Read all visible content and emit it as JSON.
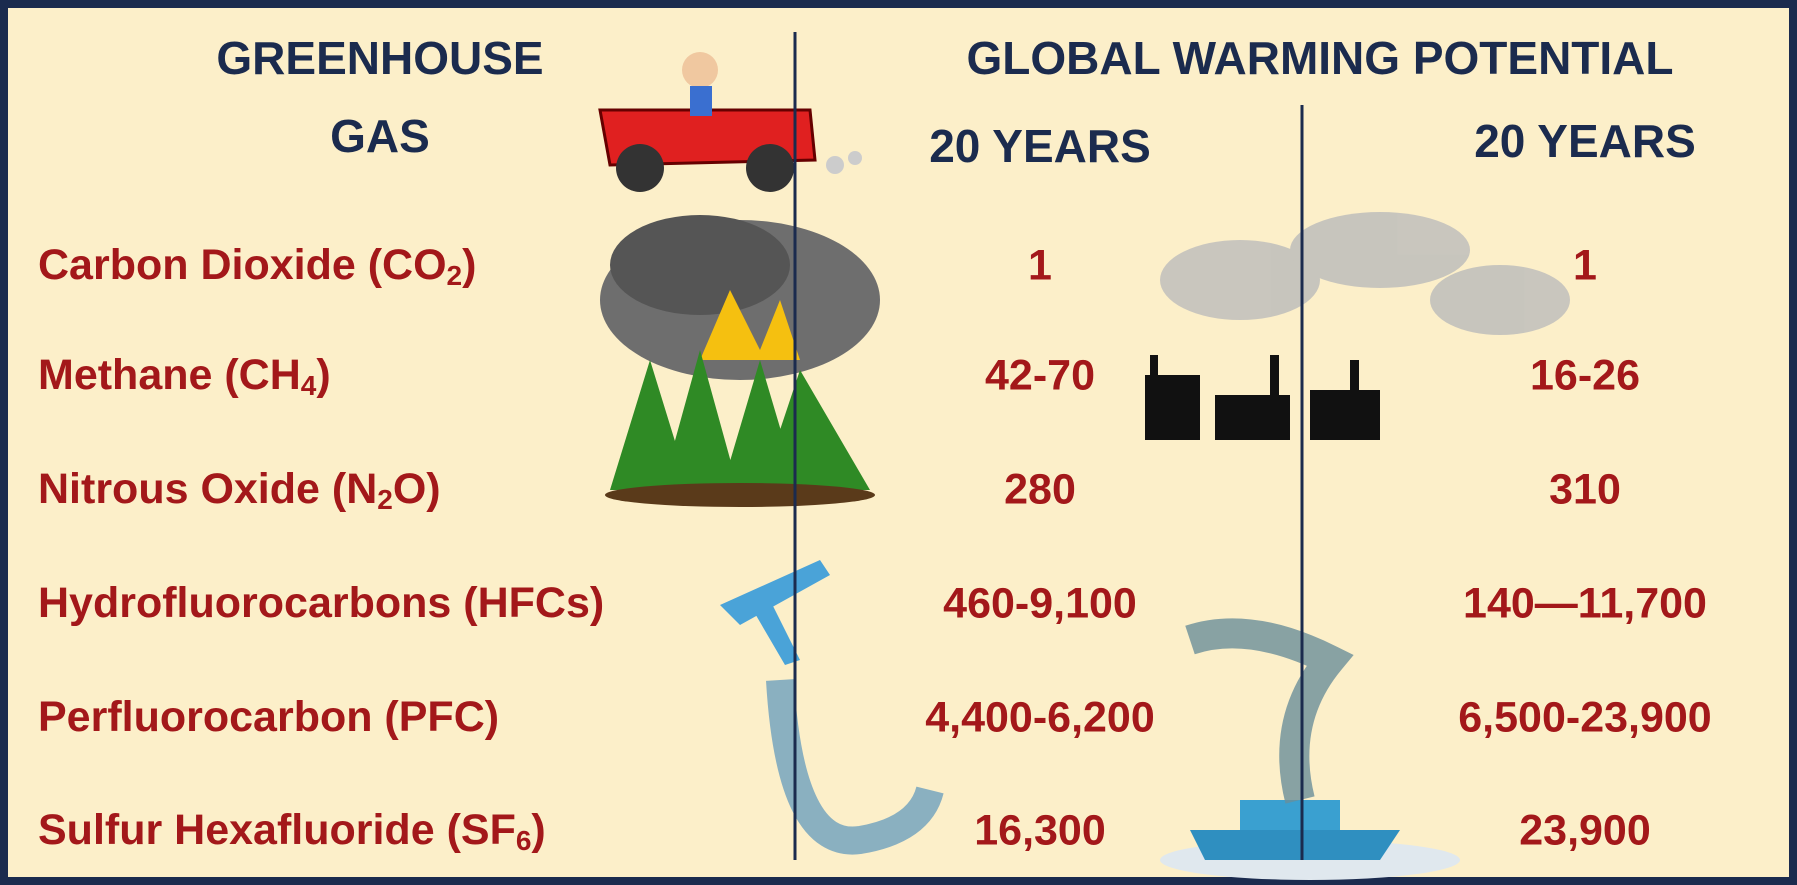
{
  "header": {
    "title_lines": [
      "GREENHOUSE",
      "GAS"
    ],
    "group_title": "GLOBAL WARMING POTENTIAL",
    "columns": [
      "20 YEARS",
      "20 YEARS"
    ]
  },
  "table": {
    "rows": [
      {
        "gas": [
          "Carbon Dioxide (CO",
          "2",
          ")"
        ],
        "values": [
          "1",
          "1"
        ]
      },
      {
        "gas": [
          "Methane (CH",
          "4",
          ")"
        ],
        "values": [
          "42-70",
          "16-26"
        ]
      },
      {
        "gas": [
          "Nitrous Oxide (N",
          "2",
          "O)"
        ],
        "values": [
          "280",
          "310"
        ]
      },
      {
        "gas": [
          "Hydrofluorocarbons (HFCs)"
        ],
        "values": [
          "460-9,100",
          "140—11,700"
        ]
      },
      {
        "gas": [
          "Perfluorocarbon (PFC)"
        ],
        "values": [
          "4,400-6,200",
          "6,500-23,900"
        ]
      },
      {
        "gas": [
          "Sulfur Hexafluoride (SF",
          "6",
          ")"
        ],
        "values": [
          "16,300",
          "23,900"
        ]
      }
    ]
  }
}
